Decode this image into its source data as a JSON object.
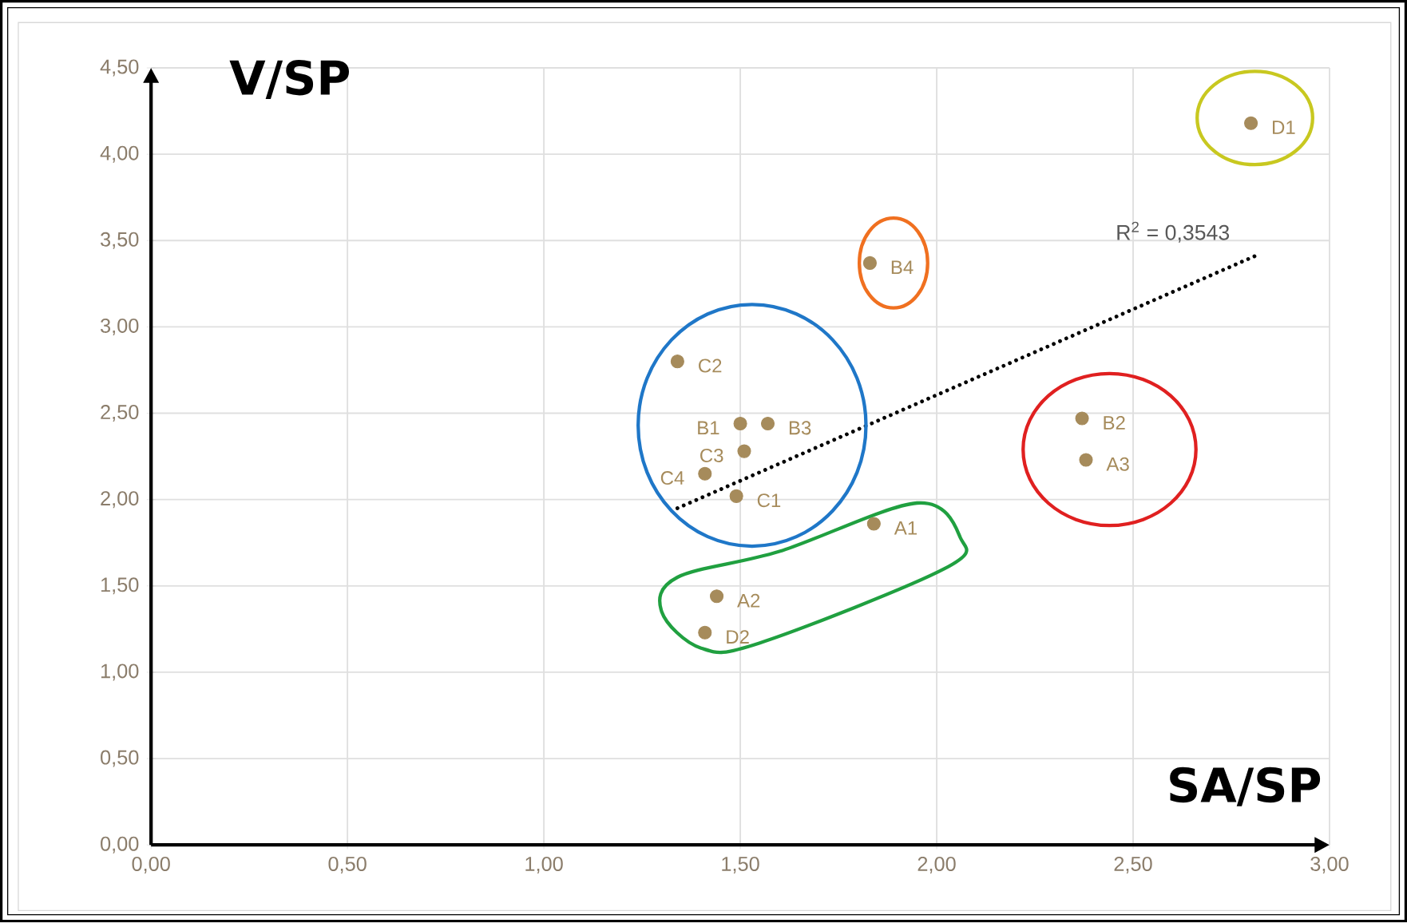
{
  "chart_data": {
    "type": "scatter",
    "xlabel": "SA/SP",
    "ylabel": "V/SP",
    "xlim": [
      0,
      3
    ],
    "ylim": [
      0,
      4.5
    ],
    "xticks": [
      {
        "value": 0,
        "label": "0,00"
      },
      {
        "value": 0.5,
        "label": "0,50"
      },
      {
        "value": 1,
        "label": "1,00"
      },
      {
        "value": 1.5,
        "label": "1,50"
      },
      {
        "value": 2,
        "label": "2,00"
      },
      {
        "value": 2.5,
        "label": "2,50"
      },
      {
        "value": 3,
        "label": "3,00"
      }
    ],
    "yticks": [
      {
        "value": 0,
        "label": "0,00"
      },
      {
        "value": 0.5,
        "label": "0,50"
      },
      {
        "value": 1,
        "label": "1,00"
      },
      {
        "value": 1.5,
        "label": "1,50"
      },
      {
        "value": 2,
        "label": "2,00"
      },
      {
        "value": 2.5,
        "label": "2,50"
      },
      {
        "value": 3,
        "label": "3,00"
      },
      {
        "value": 3.5,
        "label": "3,50"
      },
      {
        "value": 4,
        "label": "4,00"
      },
      {
        "value": 4.5,
        "label": "4,50"
      }
    ],
    "grid": true,
    "series": [
      {
        "marker": "circle",
        "color": "#a68b5b",
        "x": [
          2.8,
          1.83,
          1.34,
          1.5,
          1.57,
          1.51,
          1.41,
          1.49,
          1.84,
          1.44,
          1.41,
          2.37,
          2.38
        ],
        "values": [
          4.18,
          3.37,
          2.8,
          2.44,
          2.44,
          2.28,
          2.15,
          2.02,
          1.86,
          1.44,
          1.23,
          2.47,
          2.23
        ],
        "value_labels": [
          "D1",
          "B4",
          "C2",
          "B1",
          "B3",
          "C3",
          "C4",
          "C1",
          "A1",
          "A2",
          "D2",
          "B2",
          "A3"
        ]
      },
      {
        "type": "line",
        "marker": "none",
        "line_style": "dotted",
        "color": "#000000",
        "x": [
          1.34,
          2.82
        ],
        "values": [
          1.95,
          3.42
        ]
      }
    ],
    "annotations": [
      "R$^{2}$ = 0,3543"
    ]
  }
}
